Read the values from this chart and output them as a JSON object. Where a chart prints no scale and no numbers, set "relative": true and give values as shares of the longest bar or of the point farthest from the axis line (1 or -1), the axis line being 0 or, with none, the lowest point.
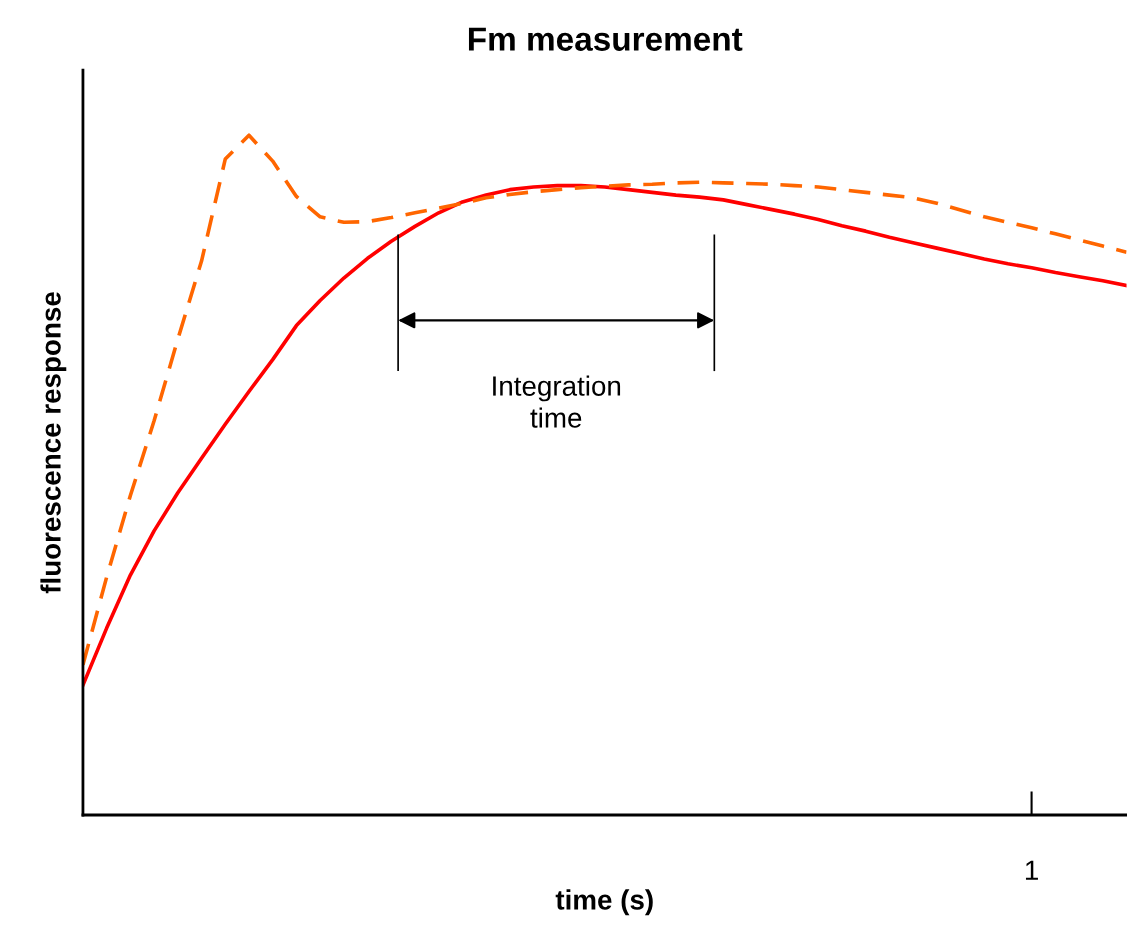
{
  "chart_data": {
    "type": "line",
    "title": "Fm measurement",
    "xlabel": "time (s)",
    "ylabel": "fluorescence response",
    "relative": true,
    "marker": "none",
    "categories": [
      null,
      null,
      null,
      null,
      null,
      null,
      null,
      null,
      null,
      null,
      null,
      null,
      null,
      null,
      null,
      null,
      null,
      null,
      null,
      null,
      null,
      null,
      null,
      null,
      null,
      null,
      null,
      null,
      null,
      null,
      null,
      null,
      null,
      null,
      null,
      null,
      null,
      null,
      null,
      null,
      null,
      null,
      null,
      null,
      null
    ],
    "annotations": [
      "1",
      "Integration\ntime"
    ],
    "series": [
      {
        "color": "#ff0000",
        "line_style": "solid",
        "values": [
          0.191,
          0.275,
          0.353,
          0.418,
          0.474,
          0.525,
          0.575,
          0.623,
          0.67,
          0.72,
          0.757,
          0.79,
          0.819,
          0.844,
          0.866,
          0.886,
          0.902,
          0.912,
          0.92,
          0.924,
          0.926,
          0.926,
          0.924,
          0.92,
          0.916,
          0.912,
          0.909,
          0.905,
          0.898,
          0.891,
          0.884,
          0.876,
          0.867,
          0.859,
          0.85,
          0.842,
          0.834,
          0.826,
          0.818,
          0.811,
          0.805,
          0.798,
          0.792,
          0.786,
          0.779
        ]
      },
      {
        "color": "#ff6600",
        "line_style": "dashed",
        "values": [
          0.221,
          0.35,
          0.47,
          0.58,
          0.7,
          0.815,
          0.965,
          1,
          0.962,
          0.91,
          0.88,
          0.872,
          0.873,
          0.879,
          0.886,
          0.893,
          0.9,
          0.908,
          0.913,
          0.917,
          0.92,
          0.923,
          0.925,
          0.927,
          0.928,
          0.93,
          0.931,
          0.93,
          0.929,
          0.928,
          0.926,
          0.924,
          0.92,
          0.916,
          0.912,
          0.908,
          0.9,
          0.89,
          0.88,
          0.872,
          0.864,
          0.855,
          0.846,
          0.837,
          0.828
        ]
      }
    ]
  }
}
